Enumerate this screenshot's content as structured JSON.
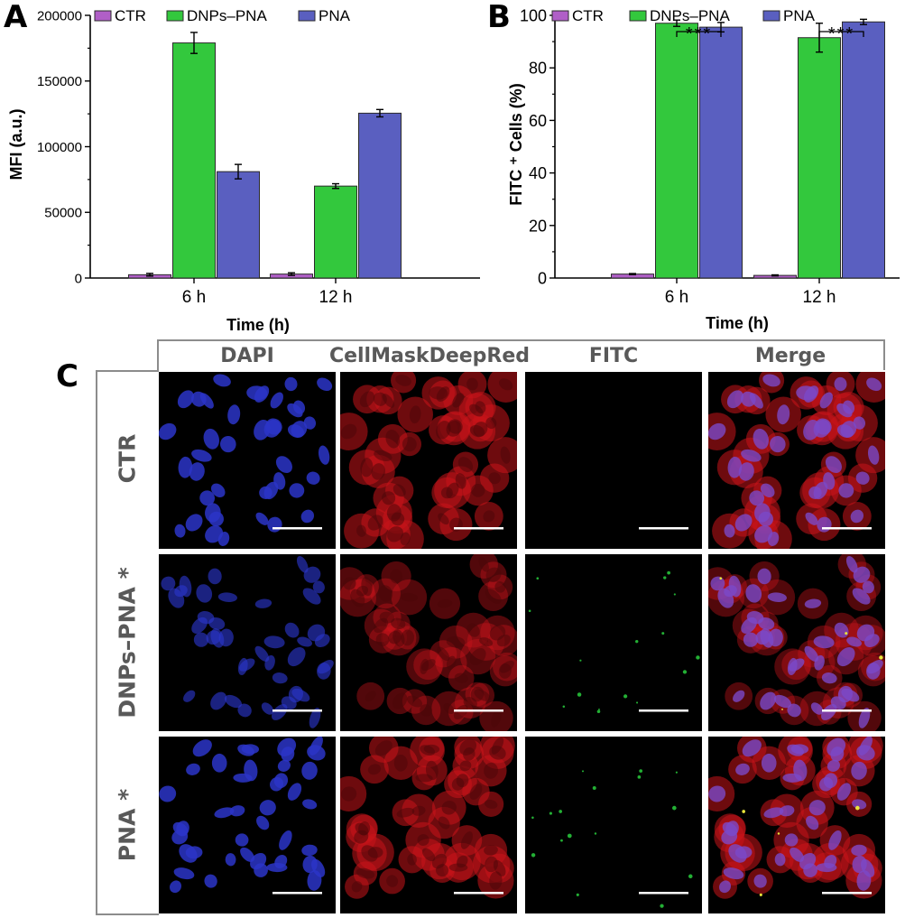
{
  "panels": {
    "a": "A",
    "b": "B",
    "c": "C"
  },
  "chart_data": [
    {
      "type": "bar",
      "panel": "A",
      "categories": [
        "6 h",
        "12 h"
      ],
      "series": [
        {
          "name": "CTR",
          "values": [
            2500,
            3000
          ],
          "errors": [
            1000,
            1000
          ],
          "color": "#b05fc7"
        },
        {
          "name": "DNPs–PNA",
          "values": [
            179000,
            70000
          ],
          "errors": [
            8000,
            1800
          ],
          "color": "#33c83d"
        },
        {
          "name": "PNA",
          "values": [
            81000,
            125500
          ],
          "errors": [
            5500,
            2800
          ],
          "color": "#5a5fc0"
        }
      ],
      "xlabel": "Time (h)",
      "ylabel": "MFI (a.u.)",
      "ylim": [
        0,
        200000
      ],
      "yticks": [
        "0",
        "50000",
        "100000",
        "150000",
        "200000"
      ],
      "legend": "top",
      "grid": false
    },
    {
      "type": "bar",
      "panel": "B",
      "categories": [
        "6 h",
        "12 h"
      ],
      "series": [
        {
          "name": "CTR",
          "values": [
            1.5,
            1.0
          ],
          "errors": [
            0.2,
            0.2
          ],
          "color": "#b05fc7"
        },
        {
          "name": "DNPs–PNA",
          "values": [
            97,
            91.5
          ],
          "errors": [
            1.2,
            5.5
          ],
          "color": "#33c83d"
        },
        {
          "name": "PNA",
          "values": [
            95.5,
            97.5
          ],
          "errors": [
            1.8,
            1.0
          ],
          "color": "#5a5fc0"
        }
      ],
      "xlabel": "Time (h)",
      "ylabel": "FITC ⁺ Cells (%)",
      "ylim": [
        0,
        100
      ],
      "yticks": [
        "0",
        "20",
        "40",
        "60",
        "80",
        "100"
      ],
      "significance": [
        "***",
        "***"
      ],
      "legend": "top",
      "grid": false
    }
  ],
  "micrographs": {
    "columns": [
      "DAPI",
      "CellMaskDeepRed",
      "FITC",
      "Merge"
    ],
    "rows": [
      "CTR",
      "DNPs–PNA *",
      "PNA *"
    ],
    "fitc_signal": [
      "none",
      "sparse green puncta",
      "sparse green puncta"
    ]
  }
}
